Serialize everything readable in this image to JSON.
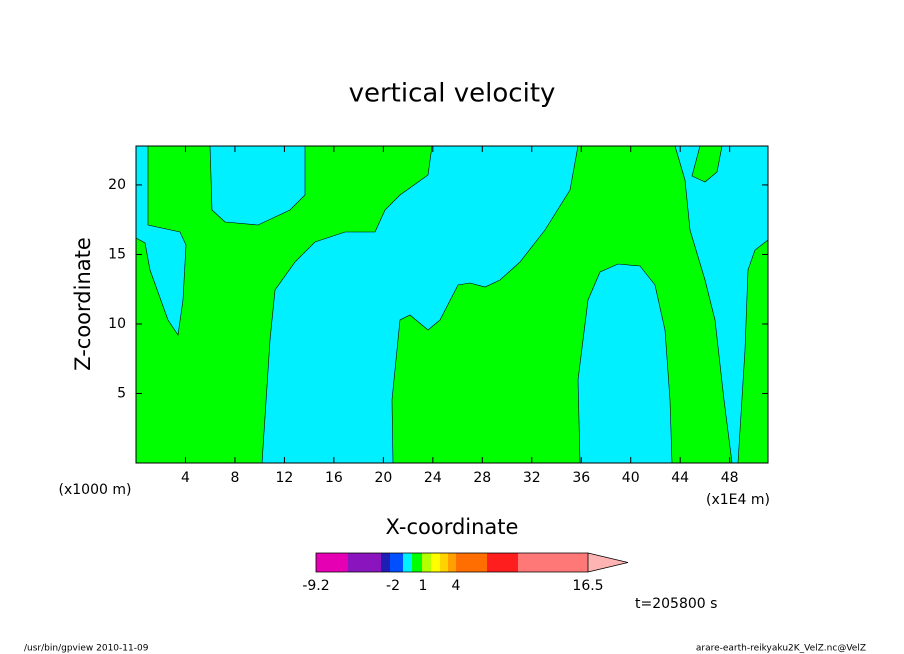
{
  "chart_data": {
    "type": "contour",
    "title": "vertical velocity",
    "xlabel": "X-coordinate",
    "ylabel": "Z-coordinate",
    "x_unit": "(x1000 m)",
    "x_unit_right": "(x1E4 m)",
    "xlim": [
      0,
      51.1
    ],
    "xticks": [
      4,
      8,
      12,
      16,
      20,
      24,
      28,
      32,
      36,
      40,
      44,
      48
    ],
    "ylim": [
      0,
      22.8
    ],
    "yticks": [
      5,
      10,
      15,
      20
    ],
    "colorbar_labels": [
      -9.2,
      -2,
      1,
      4,
      16.5
    ],
    "time_label": "t=205800 s",
    "footer_left": "/usr/bin/gpview  2010-11-09",
    "footer_right": "arare-earth-reikyaku2K_VelZ.nc@VelZ"
  }
}
